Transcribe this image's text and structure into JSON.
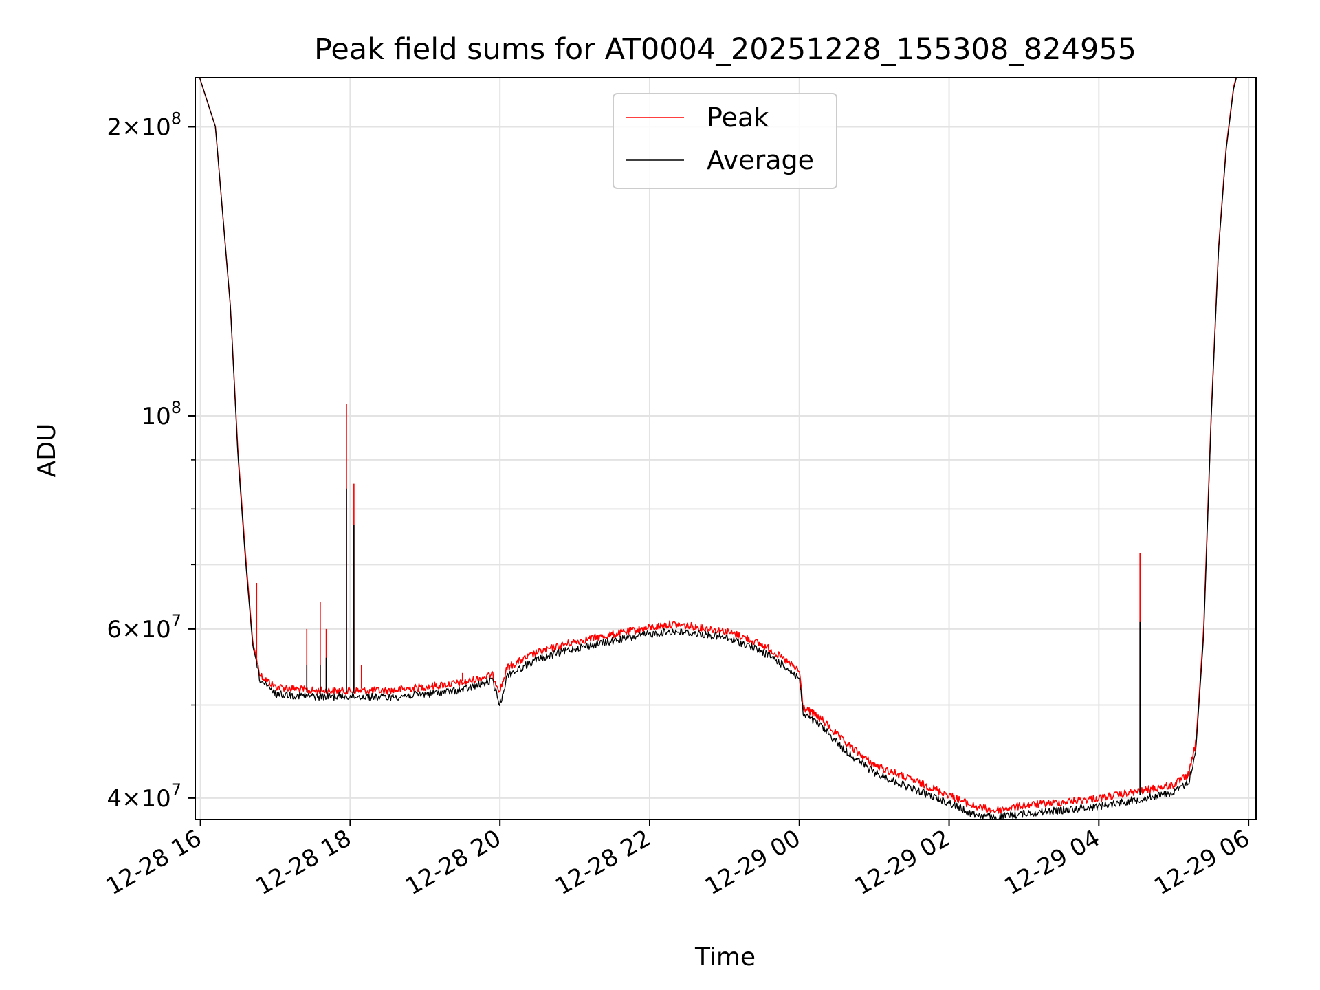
{
  "chart_data": {
    "type": "line",
    "title": "Peak field sums for AT0004_20251228_155308_824955",
    "xlabel": "Time",
    "ylabel": "ADU",
    "yscale": "log",
    "ylim": [
      38000000,
      225000000
    ],
    "xlim_hours": [
      15.93,
      30.1
    ],
    "x_ticks": [
      {
        "hour": 16,
        "label": "12-28 16"
      },
      {
        "hour": 18,
        "label": "12-28 18"
      },
      {
        "hour": 20,
        "label": "12-28 20"
      },
      {
        "hour": 22,
        "label": "12-28 22"
      },
      {
        "hour": 24,
        "label": "12-29 00"
      },
      {
        "hour": 26,
        "label": "12-29 02"
      },
      {
        "hour": 28,
        "label": "12-29 04"
      },
      {
        "hour": 30,
        "label": "12-29 06"
      }
    ],
    "y_ticks": [
      {
        "value": 40000000,
        "base": "4×10",
        "exp": "7"
      },
      {
        "value": 60000000,
        "base": "6×10",
        "exp": "7"
      },
      {
        "value": 100000000,
        "base": "10",
        "exp": "8"
      },
      {
        "value": 200000000,
        "base": "2×10",
        "exp": "8"
      }
    ],
    "y_minor_ticks": [
      50000000,
      70000000,
      80000000,
      90000000
    ],
    "legend": {
      "position": "upper center"
    },
    "series": [
      {
        "name": "Peak",
        "color": "#ff0000",
        "points": [
          [
            15.95,
            230000000
          ],
          [
            16.2,
            200000000
          ],
          [
            16.4,
            130000000
          ],
          [
            16.5,
            92000000
          ],
          [
            16.6,
            72000000
          ],
          [
            16.7,
            58000000
          ],
          [
            16.8,
            54000000
          ],
          [
            17.0,
            52500000
          ],
          [
            17.5,
            52000000
          ],
          [
            18.0,
            52000000
          ],
          [
            18.5,
            52000000
          ],
          [
            19.0,
            52500000
          ],
          [
            19.5,
            53000000
          ],
          [
            19.9,
            54000000
          ],
          [
            20.0,
            52000000
          ],
          [
            20.1,
            55000000
          ],
          [
            20.5,
            57000000
          ],
          [
            21.0,
            58500000
          ],
          [
            21.5,
            59500000
          ],
          [
            22.0,
            60500000
          ],
          [
            22.3,
            61000000
          ],
          [
            22.7,
            60500000
          ],
          [
            23.0,
            60000000
          ],
          [
            23.3,
            59000000
          ],
          [
            23.6,
            57500000
          ],
          [
            23.8,
            56000000
          ],
          [
            24.0,
            54500000
          ],
          [
            24.05,
            50000000
          ],
          [
            24.3,
            48500000
          ],
          [
            24.6,
            46000000
          ],
          [
            25.0,
            43500000
          ],
          [
            25.5,
            42000000
          ],
          [
            26.0,
            40500000
          ],
          [
            26.3,
            39500000
          ],
          [
            26.6,
            39000000
          ],
          [
            27.0,
            39500000
          ],
          [
            27.5,
            39800000
          ],
          [
            28.0,
            40200000
          ],
          [
            28.5,
            40800000
          ],
          [
            29.0,
            41500000
          ],
          [
            29.2,
            42500000
          ],
          [
            29.3,
            46000000
          ],
          [
            29.4,
            60000000
          ],
          [
            29.5,
            100000000
          ],
          [
            29.6,
            150000000
          ],
          [
            29.7,
            190000000
          ],
          [
            29.8,
            220000000
          ],
          [
            29.9,
            235000000
          ]
        ],
        "spikes": [
          [
            16.75,
            67000000
          ],
          [
            17.42,
            60000000
          ],
          [
            17.6,
            64000000
          ],
          [
            17.68,
            60000000
          ],
          [
            17.95,
            103000000
          ],
          [
            18.05,
            85000000
          ],
          [
            18.15,
            55000000
          ],
          [
            19.5,
            54000000
          ],
          [
            28.55,
            72000000
          ]
        ]
      },
      {
        "name": "Average",
        "color": "#000000",
        "points": [
          [
            15.95,
            230000000
          ],
          [
            16.2,
            200000000
          ],
          [
            16.4,
            130000000
          ],
          [
            16.5,
            91000000
          ],
          [
            16.6,
            71000000
          ],
          [
            16.7,
            57500000
          ],
          [
            16.8,
            53500000
          ],
          [
            17.0,
            51800000
          ],
          [
            17.5,
            51500000
          ],
          [
            18.0,
            51500000
          ],
          [
            18.5,
            51400000
          ],
          [
            19.0,
            51800000
          ],
          [
            19.5,
            52300000
          ],
          [
            19.9,
            53500000
          ],
          [
            20.0,
            50500000
          ],
          [
            20.1,
            54200000
          ],
          [
            20.5,
            56300000
          ],
          [
            21.0,
            57800000
          ],
          [
            21.5,
            58800000
          ],
          [
            22.0,
            59800000
          ],
          [
            22.3,
            60200000
          ],
          [
            22.7,
            59800000
          ],
          [
            23.0,
            59300000
          ],
          [
            23.3,
            58300000
          ],
          [
            23.6,
            56800000
          ],
          [
            23.8,
            55400000
          ],
          [
            24.0,
            53800000
          ],
          [
            24.05,
            49400000
          ],
          [
            24.3,
            47900000
          ],
          [
            24.6,
            45300000
          ],
          [
            25.0,
            42900000
          ],
          [
            25.5,
            41300000
          ],
          [
            26.0,
            39900000
          ],
          [
            26.3,
            38900000
          ],
          [
            26.6,
            38500000
          ],
          [
            27.0,
            38900000
          ],
          [
            27.5,
            39200000
          ],
          [
            28.0,
            39600000
          ],
          [
            28.5,
            40200000
          ],
          [
            29.0,
            40900000
          ],
          [
            29.2,
            41900000
          ],
          [
            29.3,
            45400000
          ],
          [
            29.4,
            59000000
          ],
          [
            29.5,
            99000000
          ],
          [
            29.6,
            149000000
          ],
          [
            29.7,
            189000000
          ],
          [
            29.8,
            219000000
          ],
          [
            29.9,
            235000000
          ]
        ],
        "spikes": [
          [
            17.42,
            55000000
          ],
          [
            17.6,
            55000000
          ],
          [
            17.68,
            56000000
          ],
          [
            17.95,
            84000000
          ],
          [
            18.05,
            77000000
          ],
          [
            28.55,
            61000000
          ]
        ]
      }
    ]
  }
}
